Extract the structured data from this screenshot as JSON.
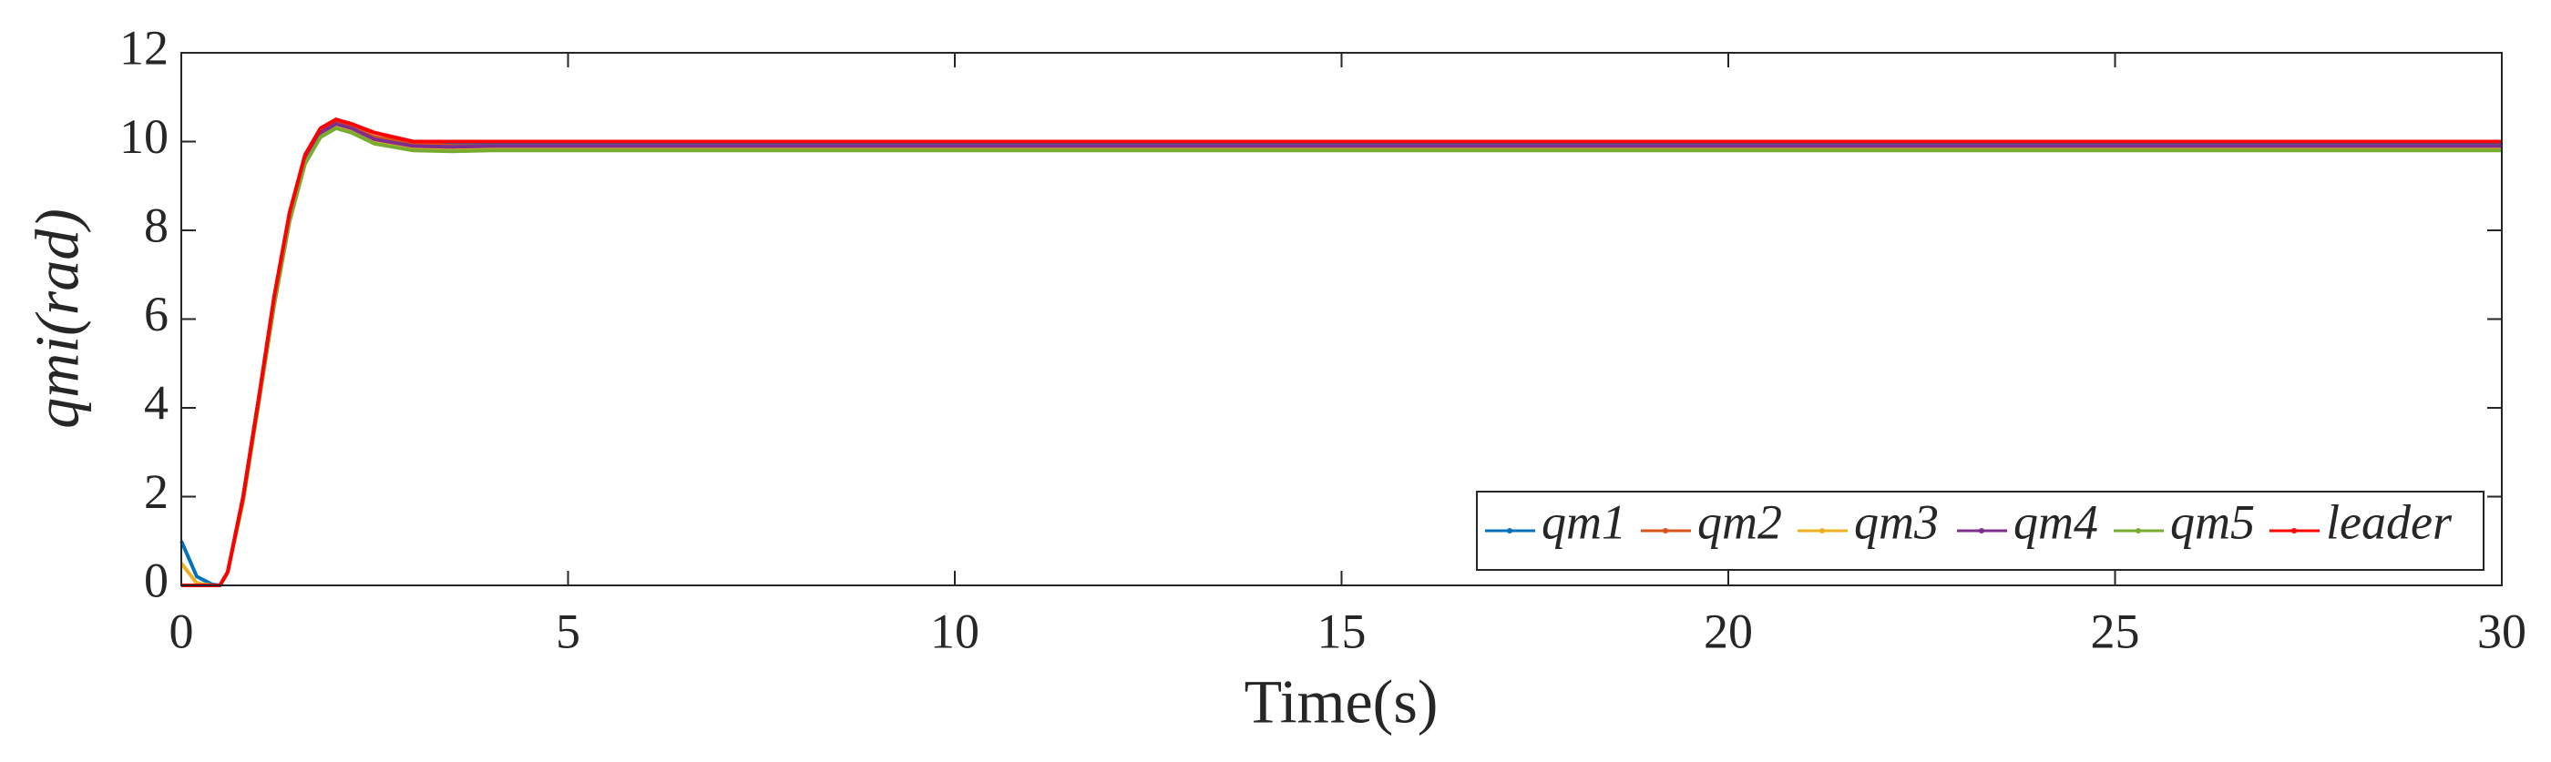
{
  "chart_data": {
    "type": "line",
    "xlabel": "Time(s)",
    "ylabel": "qmi(rad)",
    "x": [
      0,
      0.2,
      0.4,
      0.5,
      0.6,
      0.8,
      1,
      1.2,
      1.4,
      1.6,
      1.8,
      2,
      2.2,
      2.5,
      3,
      3.5,
      4,
      5,
      10,
      15,
      20,
      25,
      30
    ],
    "series": [
      {
        "name": "qm1",
        "color": "#0072BD",
        "values": [
          1.0,
          0.2,
          0.02,
          0,
          0.3,
          2,
          4.2,
          6.4,
          8.3,
          9.6,
          10.2,
          10.4,
          10.3,
          10.1,
          9.95,
          9.93,
          9.95,
          9.95,
          9.95,
          9.95,
          9.95,
          9.95,
          9.95
        ]
      },
      {
        "name": "qm2",
        "color": "#D95319",
        "values": [
          0,
          0,
          0,
          0,
          0.3,
          2,
          4.2,
          6.5,
          8.4,
          9.7,
          10.3,
          10.45,
          10.35,
          10.1,
          9.95,
          9.9,
          9.9,
          9.9,
          9.9,
          9.9,
          9.9,
          9.9,
          9.9
        ]
      },
      {
        "name": "qm3",
        "color": "#EDB120",
        "values": [
          0.5,
          0.05,
          0,
          0,
          0.3,
          2,
          4.1,
          6.4,
          8.3,
          9.6,
          10.2,
          10.35,
          10.25,
          10.0,
          9.85,
          9.83,
          9.85,
          9.85,
          9.85,
          9.85,
          9.85,
          9.85,
          9.85
        ]
      },
      {
        "name": "qm4",
        "color": "#7E2F8E",
        "values": [
          0,
          0,
          0,
          0,
          0.3,
          2,
          4.2,
          6.4,
          8.3,
          9.6,
          10.2,
          10.4,
          10.3,
          10.05,
          9.9,
          9.88,
          9.9,
          9.9,
          9.9,
          9.9,
          9.9,
          9.9,
          9.9
        ]
      },
      {
        "name": "qm5",
        "color": "#77AC30",
        "values": [
          0,
          0,
          0,
          0,
          0.3,
          1.9,
          4.1,
          6.3,
          8.2,
          9.5,
          10.1,
          10.3,
          10.2,
          9.95,
          9.8,
          9.78,
          9.8,
          9.8,
          9.8,
          9.8,
          9.8,
          9.8,
          9.8
        ]
      },
      {
        "name": "leader",
        "color": "#FF0000",
        "values": [
          0,
          0,
          0,
          0,
          0.3,
          2,
          4.2,
          6.5,
          8.4,
          9.7,
          10.3,
          10.5,
          10.4,
          10.2,
          10.0,
          10.0,
          10.0,
          10.0,
          10,
          10,
          10,
          10,
          10
        ]
      }
    ],
    "xlim": [
      0,
      30
    ],
    "xticks": [
      0,
      5,
      10,
      15,
      20,
      25,
      30
    ],
    "ylim": [
      0,
      12
    ],
    "yticks": [
      0,
      2,
      4,
      6,
      8,
      10,
      12
    ],
    "legend": "lower right",
    "grid": false
  }
}
